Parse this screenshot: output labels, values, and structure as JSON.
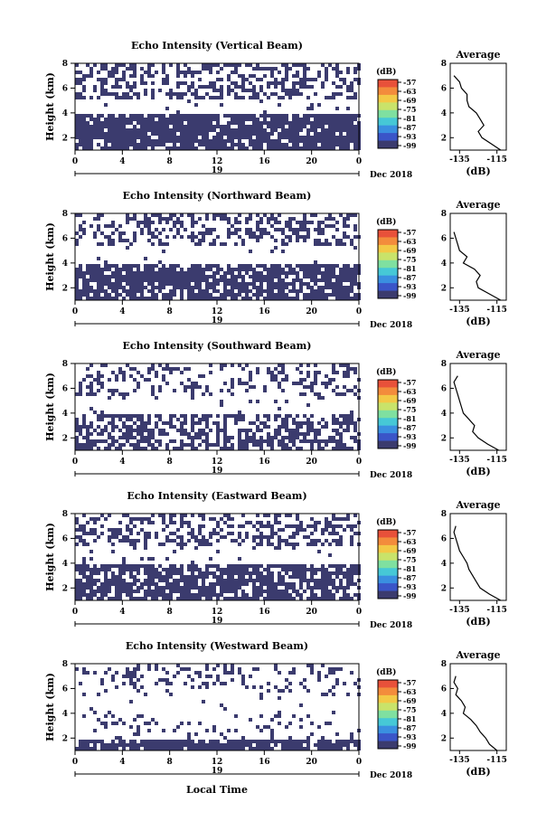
{
  "figure": {
    "x_axis_label": "Local Time",
    "date_label": "Dec 2018",
    "day_label": "19"
  },
  "chart_data": [
    {
      "type": "heatmap",
      "title": "Echo Intensity (Vertical Beam)",
      "ylabel": "Height (km)",
      "x_ticks": [
        "0",
        "4",
        "8",
        "12",
        "16",
        "20",
        "0"
      ],
      "y_ticks": [
        "2",
        "4",
        "6",
        "8"
      ],
      "xlim": [
        0,
        24
      ],
      "ylim": [
        1.0,
        8.0
      ],
      "colorbar": {
        "label": "(dB)",
        "ticks": [
          "-57",
          "-63",
          "-69",
          "-75",
          "-81",
          "-87",
          "-93",
          "-99"
        ]
      },
      "layers": [
        {
          "bottom": 1.0,
          "top": 4.0,
          "fill": 0.85
        },
        {
          "bottom": 4.0,
          "top": 5.2,
          "fill": 0.05
        },
        {
          "bottom": 5.2,
          "top": 8.0,
          "fill": 0.45
        }
      ],
      "profile": {
        "title": "Average",
        "xlabel": "(dB)",
        "x_ticks": [
          "-135",
          "-115"
        ],
        "y_ticks": [
          "2",
          "4",
          "6",
          "8"
        ],
        "xlim": [
          -140,
          -110
        ],
        "ylim": [
          1,
          8
        ],
        "heights": [
          1.0,
          1.5,
          2.0,
          2.5,
          3.0,
          3.5,
          4.0,
          4.5,
          5.0,
          5.5,
          6.0,
          6.5,
          7.0
        ],
        "values": [
          -113,
          -118,
          -123,
          -125,
          -122,
          -124,
          -126,
          -130,
          -131,
          -131,
          -134,
          -135,
          -138
        ]
      }
    },
    {
      "type": "heatmap",
      "title": "Echo Intensity (Northward Beam)",
      "ylabel": "Height (km)",
      "x_ticks": [
        "0",
        "4",
        "8",
        "12",
        "16",
        "20",
        "0"
      ],
      "y_ticks": [
        "2",
        "4",
        "6",
        "8"
      ],
      "xlim": [
        0,
        24
      ],
      "ylim": [
        1.0,
        8.0
      ],
      "colorbar": {
        "label": "(dB)",
        "ticks": [
          "-57",
          "-63",
          "-69",
          "-75",
          "-81",
          "-87",
          "-93",
          "-99"
        ]
      },
      "layers": [
        {
          "bottom": 1.0,
          "top": 4.0,
          "fill": 0.8
        },
        {
          "bottom": 4.0,
          "top": 5.5,
          "fill": 0.05
        },
        {
          "bottom": 5.5,
          "top": 8.0,
          "fill": 0.4
        }
      ],
      "profile": {
        "title": "Average",
        "xlabel": "(dB)",
        "x_ticks": [
          "-135",
          "-115"
        ],
        "y_ticks": [
          "2",
          "4",
          "6",
          "8"
        ],
        "xlim": [
          -140,
          -110
        ],
        "ylim": [
          1,
          8
        ],
        "heights": [
          1.0,
          1.5,
          2.0,
          2.5,
          3.0,
          3.5,
          4.0,
          4.5,
          5.0,
          5.5,
          6.0,
          6.5
        ],
        "values": [
          -113,
          -119,
          -125,
          -126,
          -124,
          -127,
          -133,
          -131,
          -135,
          -136,
          -137,
          -138
        ]
      }
    },
    {
      "type": "heatmap",
      "title": "Echo Intensity (Southward Beam)",
      "ylabel": "Height (km)",
      "x_ticks": [
        "0",
        "4",
        "8",
        "12",
        "16",
        "20",
        "0"
      ],
      "y_ticks": [
        "2",
        "4",
        "6",
        "8"
      ],
      "xlim": [
        0,
        24
      ],
      "ylim": [
        1.0,
        8.0
      ],
      "colorbar": {
        "label": "(dB)",
        "ticks": [
          "-57",
          "-63",
          "-69",
          "-75",
          "-81",
          "-87",
          "-93",
          "-99"
        ]
      },
      "layers": [
        {
          "bottom": 1.0,
          "top": 4.0,
          "fill": 0.55
        },
        {
          "bottom": 4.0,
          "top": 5.5,
          "fill": 0.05
        },
        {
          "bottom": 5.5,
          "top": 8.0,
          "fill": 0.3
        }
      ],
      "profile": {
        "title": "Average",
        "xlabel": "(dB)",
        "x_ticks": [
          "-135",
          "-115"
        ],
        "y_ticks": [
          "2",
          "4",
          "6",
          "8"
        ],
        "xlim": [
          -140,
          -110
        ],
        "ylim": [
          1,
          8
        ],
        "heights": [
          1.0,
          1.5,
          2.0,
          2.5,
          3.0,
          3.5,
          4.0,
          4.5,
          5.0,
          5.5,
          6.0,
          6.5,
          7.0
        ],
        "values": [
          -114,
          -120,
          -125,
          -128,
          -127,
          -130,
          -133,
          -134,
          -135,
          -136,
          -137,
          -138,
          -136
        ]
      }
    },
    {
      "type": "heatmap",
      "title": "Echo Intensity (Eastward Beam)",
      "ylabel": "Height (km)",
      "x_ticks": [
        "0",
        "4",
        "8",
        "12",
        "16",
        "20",
        "0"
      ],
      "y_ticks": [
        "2",
        "4",
        "6",
        "8"
      ],
      "xlim": [
        0,
        24
      ],
      "ylim": [
        1.0,
        8.0
      ],
      "colorbar": {
        "label": "(dB)",
        "ticks": [
          "-57",
          "-63",
          "-69",
          "-75",
          "-81",
          "-87",
          "-93",
          "-99"
        ]
      },
      "layers": [
        {
          "bottom": 1.0,
          "top": 4.0,
          "fill": 0.75
        },
        {
          "bottom": 4.0,
          "top": 5.5,
          "fill": 0.05
        },
        {
          "bottom": 5.5,
          "top": 8.0,
          "fill": 0.4
        }
      ],
      "profile": {
        "title": "Average",
        "xlabel": "(dB)",
        "x_ticks": [
          "-135",
          "-115"
        ],
        "y_ticks": [
          "2",
          "4",
          "6",
          "8"
        ],
        "xlim": [
          -140,
          -110
        ],
        "ylim": [
          1,
          8
        ],
        "heights": [
          1.0,
          1.5,
          2.0,
          2.5,
          3.0,
          3.5,
          4.0,
          4.5,
          5.0,
          5.5,
          6.0,
          6.5,
          7.0
        ],
        "values": [
          -113,
          -119,
          -124,
          -126,
          -128,
          -130,
          -131,
          -133,
          -135,
          -136,
          -137,
          -138,
          -137
        ]
      }
    },
    {
      "type": "heatmap",
      "title": "Echo Intensity (Westward Beam)",
      "ylabel": "Height (km)",
      "x_ticks": [
        "0",
        "4",
        "8",
        "12",
        "16",
        "20",
        "0"
      ],
      "y_ticks": [
        "2",
        "4",
        "6",
        "8"
      ],
      "xlim": [
        0,
        24
      ],
      "ylim": [
        1.0,
        8.0
      ],
      "colorbar": {
        "label": "(dB)",
        "ticks": [
          "-57",
          "-63",
          "-69",
          "-75",
          "-81",
          "-87",
          "-93",
          "-99"
        ]
      },
      "layers": [
        {
          "bottom": 1.0,
          "top": 2.0,
          "fill": 0.85
        },
        {
          "bottom": 2.0,
          "top": 4.0,
          "fill": 0.15
        },
        {
          "bottom": 4.0,
          "top": 5.5,
          "fill": 0.05
        },
        {
          "bottom": 5.5,
          "top": 8.0,
          "fill": 0.2
        }
      ],
      "profile": {
        "title": "Average",
        "xlabel": "(dB)",
        "x_ticks": [
          "-135",
          "-115"
        ],
        "y_ticks": [
          "2",
          "4",
          "6",
          "8"
        ],
        "xlim": [
          -140,
          -110
        ],
        "ylim": [
          1,
          8
        ],
        "heights": [
          1.0,
          1.5,
          2.0,
          2.5,
          3.0,
          3.5,
          4.0,
          4.5,
          5.0,
          5.5,
          6.0,
          6.5,
          7.0
        ],
        "values": [
          -115,
          -119,
          -121,
          -124,
          -126,
          -129,
          -133,
          -132,
          -134,
          -137,
          -136,
          -138,
          -137
        ]
      }
    }
  ]
}
